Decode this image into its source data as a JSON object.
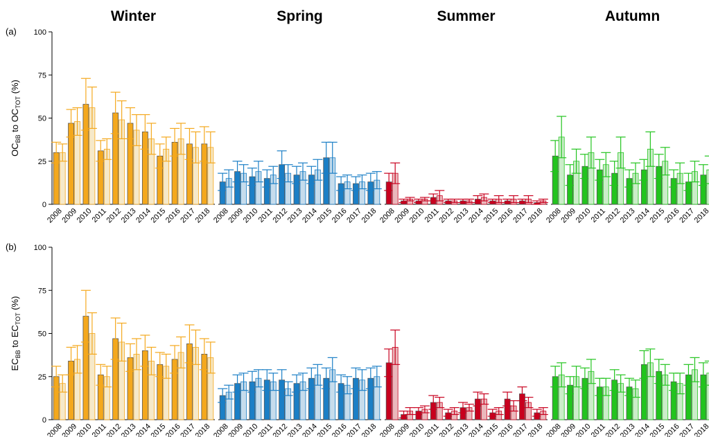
{
  "chart_data": [
    {
      "type": "bar",
      "title": "Winter",
      "panel_label": "(a)",
      "ylabel": [
        "OC",
        "BB",
        " to OC",
        "TOT",
        " (%)"
      ],
      "categories": [
        "2008",
        "2009",
        "2010",
        "2011",
        "2012",
        "2013",
        "2014",
        "2015",
        "2016",
        "2017",
        "2018"
      ],
      "ylim": [
        0,
        100
      ],
      "yticks": [
        0,
        25,
        50,
        75,
        100
      ],
      "series": [
        {
          "color": "#f4a81d",
          "values": [
            30,
            47,
            58,
            31,
            53,
            47,
            42,
            28,
            36,
            35,
            35
          ],
          "errors": [
            6,
            8,
            15,
            6,
            12,
            9,
            10,
            7,
            8,
            9,
            10
          ]
        },
        {
          "color": "#f6e9c9",
          "values": [
            30,
            48,
            56,
            32,
            49,
            43,
            38,
            32,
            38,
            33,
            33
          ],
          "errors": [
            5,
            8,
            12,
            6,
            11,
            9,
            9,
            7,
            9,
            9,
            9
          ]
        }
      ]
    },
    {
      "type": "bar",
      "title": "Spring",
      "categories": [
        "2008",
        "2009",
        "2010",
        "2011",
        "2012",
        "2013",
        "2014",
        "2015",
        "2016",
        "2017",
        "2018"
      ],
      "ylim": [
        0,
        100
      ],
      "series": [
        {
          "color": "#1b7fc6",
          "values": [
            13,
            19,
            16,
            15,
            23,
            17,
            17,
            27,
            12,
            12,
            13
          ],
          "errors": [
            5,
            6,
            5,
            5,
            8,
            5,
            5,
            9,
            4,
            4,
            5
          ]
        },
        {
          "color": "#c6dcec",
          "values": [
            15,
            18,
            19,
            17,
            18,
            19,
            20,
            27,
            13,
            13,
            14
          ],
          "errors": [
            5,
            5,
            6,
            5,
            5,
            5,
            6,
            9,
            4,
            4,
            5
          ]
        }
      ]
    },
    {
      "type": "bar",
      "title": "Summer",
      "categories": [
        "2008",
        "2009",
        "2010",
        "2011",
        "2012",
        "2013",
        "2014",
        "2015",
        "2016",
        "2017",
        "2018"
      ],
      "ylim": [
        0,
        100
      ],
      "series": [
        {
          "color": "#c8001e",
          "values": [
            13,
            2,
            2,
            4,
            2,
            2,
            3,
            2,
            2,
            2,
            1
          ],
          "errors": [
            5,
            1,
            1,
            2,
            1,
            1,
            2,
            1,
            1,
            1,
            1
          ]
        },
        {
          "color": "#eab8bc",
          "values": [
            18,
            3,
            3,
            5,
            2,
            2,
            4,
            3,
            3,
            3,
            2
          ],
          "errors": [
            6,
            1,
            1,
            3,
            1,
            1,
            2,
            2,
            2,
            2,
            1
          ]
        }
      ]
    },
    {
      "type": "bar",
      "title": "Autumn",
      "categories": [
        "2008",
        "2009",
        "2010",
        "2011",
        "2012",
        "2013",
        "2014",
        "2015",
        "2016",
        "2017",
        "2018"
      ],
      "ylim": [
        0,
        100
      ],
      "series": [
        {
          "color": "#22c41e",
          "values": [
            28,
            17,
            22,
            20,
            18,
            15,
            20,
            22,
            15,
            13,
            17
          ],
          "errors": [
            9,
            6,
            7,
            6,
            7,
            5,
            6,
            7,
            5,
            5,
            6
          ]
        },
        {
          "color": "#cbedc9",
          "values": [
            39,
            25,
            30,
            23,
            30,
            18,
            32,
            25,
            18,
            19,
            20
          ],
          "errors": [
            12,
            7,
            9,
            7,
            9,
            6,
            10,
            8,
            6,
            6,
            8
          ]
        }
      ]
    },
    {
      "type": "bar",
      "panel_label": "(b)",
      "ylabel": [
        "EC",
        "BB",
        " to EC",
        "TOT",
        " (%)"
      ],
      "categories": [
        "2008",
        "2009",
        "2010",
        "2011",
        "2012",
        "2013",
        "2014",
        "2015",
        "2016",
        "2017",
        "2018"
      ],
      "ylim": [
        0,
        100
      ],
      "yticks": [
        0,
        25,
        50,
        75,
        100
      ],
      "series": [
        {
          "color": "#f4a81d",
          "values": [
            25,
            34,
            60,
            26,
            47,
            36,
            40,
            32,
            35,
            44,
            38
          ],
          "errors": [
            6,
            8,
            15,
            6,
            12,
            8,
            9,
            7,
            8,
            11,
            9
          ]
        },
        {
          "color": "#f6e9c9",
          "values": [
            21,
            35,
            50,
            25,
            45,
            38,
            34,
            31,
            39,
            42,
            36
          ],
          "errors": [
            5,
            8,
            12,
            6,
            11,
            9,
            8,
            7,
            9,
            10,
            9
          ]
        }
      ]
    },
    {
      "type": "bar",
      "categories": [
        "2008",
        "2009",
        "2010",
        "2011",
        "2012",
        "2013",
        "2014",
        "2015",
        "2016",
        "2017",
        "2018"
      ],
      "ylim": [
        0,
        100
      ],
      "series": [
        {
          "color": "#1b7fc6",
          "values": [
            14,
            21,
            22,
            23,
            23,
            21,
            24,
            24,
            21,
            24,
            24
          ],
          "errors": [
            4,
            5,
            6,
            6,
            6,
            5,
            6,
            6,
            5,
            6,
            6
          ]
        },
        {
          "color": "#c6dcec",
          "values": [
            16,
            22,
            24,
            22,
            18,
            22,
            26,
            29,
            20,
            23,
            25
          ],
          "errors": [
            4,
            5,
            5,
            5,
            4,
            5,
            6,
            7,
            5,
            6,
            6
          ]
        }
      ]
    },
    {
      "type": "bar",
      "categories": [
        "2008",
        "2009",
        "2010",
        "2011",
        "2012",
        "2013",
        "2014",
        "2015",
        "2016",
        "2017",
        "2018"
      ],
      "ylim": [
        0,
        100
      ],
      "series": [
        {
          "color": "#c8001e",
          "values": [
            33,
            3,
            5,
            10,
            4,
            7,
            12,
            4,
            12,
            15,
            4
          ],
          "errors": [
            8,
            2,
            2,
            4,
            2,
            3,
            4,
            2,
            4,
            4,
            2
          ]
        },
        {
          "color": "#eab8bc",
          "values": [
            42,
            5,
            6,
            10,
            5,
            7,
            12,
            5,
            8,
            10,
            5
          ],
          "errors": [
            10,
            2,
            2,
            3,
            2,
            2,
            3,
            2,
            3,
            3,
            2
          ]
        }
      ]
    },
    {
      "type": "bar",
      "categories": [
        "2008",
        "2009",
        "2010",
        "2011",
        "2012",
        "2013",
        "2014",
        "2015",
        "2016",
        "2017",
        "2018"
      ],
      "ylim": [
        0,
        100
      ],
      "series": [
        {
          "color": "#22c41e",
          "values": [
            25,
            20,
            24,
            19,
            23,
            19,
            32,
            28,
            22,
            26,
            26
          ],
          "errors": [
            6,
            5,
            6,
            5,
            6,
            5,
            8,
            7,
            5,
            6,
            7
          ]
        },
        {
          "color": "#cbedc9",
          "values": [
            26,
            25,
            28,
            19,
            21,
            18,
            33,
            26,
            21,
            29,
            27
          ],
          "errors": [
            7,
            6,
            7,
            5,
            5,
            5,
            8,
            6,
            6,
            7,
            7
          ]
        }
      ]
    }
  ]
}
